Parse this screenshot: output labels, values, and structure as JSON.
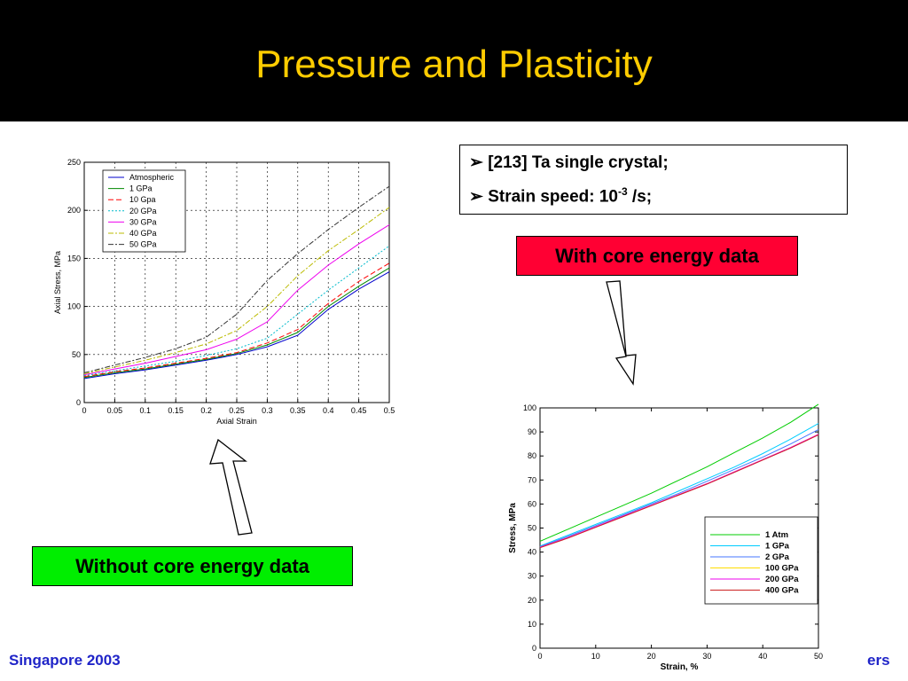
{
  "slide": {
    "title": "Pressure and Plasticity",
    "info_line1": "[213] Ta single crystal;",
    "info_line2_prefix": "Strain speed: 10",
    "info_line2_sup": "-3",
    "info_line2_suffix": " /s;",
    "with_label": "With core energy data",
    "without_label": "Without core energy data",
    "footer_left": "Singapore 2003",
    "footer_right": "ers",
    "colors": {
      "header_bg": "#000000",
      "title": "#ffcc00",
      "with_box": "#ff0033",
      "without_box": "#00ee00",
      "footer": "#1f24c8"
    }
  },
  "chart_data": [
    {
      "type": "line",
      "title": "",
      "xlabel": "Axial Strain",
      "ylabel": "Axial Stress, MPa",
      "xlim": [
        0,
        0.5
      ],
      "ylim": [
        0,
        250
      ],
      "xticks": [
        "0",
        "0.05",
        "0.1",
        "0.15",
        "0.2",
        "0.25",
        "0.3",
        "0.35",
        "0.4",
        "0.45",
        "0.5"
      ],
      "yticks": [
        "0",
        "50",
        "100",
        "150",
        "200",
        "250"
      ],
      "grid": true,
      "legend_placement": "top-left",
      "x": [
        0,
        0.05,
        0.1,
        0.15,
        0.2,
        0.25,
        0.3,
        0.35,
        0.4,
        0.45,
        0.5
      ],
      "series": [
        {
          "name": "Atmospheric",
          "color": "#0000cc",
          "dash": "",
          "values": [
            25,
            30,
            34,
            39,
            44,
            50,
            58,
            70,
            97,
            118,
            136
          ]
        },
        {
          "name": "1 GPa",
          "color": "#008800",
          "dash": "",
          "values": [
            26,
            31,
            35,
            40,
            45,
            51,
            60,
            73,
            100,
            121,
            140
          ]
        },
        {
          "name": "10 Gpa",
          "color": "#ff0000",
          "dash": "6,3",
          "values": [
            27,
            32,
            36,
            41,
            46,
            52,
            62,
            76,
            103,
            126,
            145
          ]
        },
        {
          "name": "20 GPa",
          "color": "#00bbcc",
          "dash": "2,2",
          "values": [
            28,
            33,
            38,
            43,
            49,
            56,
            67,
            92,
            117,
            140,
            163
          ]
        },
        {
          "name": "30 GPa",
          "color": "#ee00ee",
          "dash": "",
          "values": [
            29,
            35,
            41,
            48,
            55,
            66,
            84,
            117,
            143,
            165,
            185
          ]
        },
        {
          "name": "40 GPa",
          "color": "#bbbb00",
          "dash": "6,2,2,2",
          "values": [
            30,
            37,
            44,
            52,
            61,
            75,
            100,
            132,
            158,
            180,
            203
          ]
        },
        {
          "name": "50 GPa",
          "color": "#333333",
          "dash": "6,2,2,2",
          "values": [
            31,
            39,
            47,
            56,
            68,
            92,
            127,
            155,
            180,
            203,
            225
          ]
        }
      ]
    },
    {
      "type": "line",
      "title": "",
      "xlabel": "Strain, %",
      "ylabel": "Stress, MPa",
      "xlim": [
        0,
        50
      ],
      "ylim": [
        0,
        100
      ],
      "xticks": [
        "0",
        "10",
        "20",
        "30",
        "40",
        "50"
      ],
      "yticks": [
        "0",
        "10",
        "20",
        "30",
        "40",
        "50",
        "60",
        "70",
        "80",
        "90",
        "100"
      ],
      "grid": false,
      "legend_placement": "bottom-right",
      "x": [
        0,
        5,
        10,
        15,
        20,
        25,
        30,
        35,
        40,
        45,
        50
      ],
      "series": [
        {
          "name": "1 Atm",
          "color": "#00cc00",
          "values": [
            44.5,
            49.5,
            54.5,
            59.5,
            64.5,
            70,
            75.5,
            81.5,
            87.5,
            94,
            101.5
          ]
        },
        {
          "name": "1 GPa",
          "color": "#00ccff",
          "values": [
            42.5,
            47,
            51.5,
            56,
            60.5,
            65.5,
            70.5,
            75.5,
            81,
            87,
            93.5
          ]
        },
        {
          "name": "2 GPa",
          "color": "#4477ff",
          "values": [
            42.2,
            46.5,
            51,
            55.5,
            60,
            64.5,
            69.5,
            74.5,
            79.5,
            85,
            91
          ]
        },
        {
          "name": "100 GPa",
          "color": "#ffdd00",
          "values": [
            42,
            46,
            50.5,
            55,
            59.5,
            64,
            68.5,
            73.5,
            78.5,
            83.5,
            89
          ]
        },
        {
          "name": "200 GPa",
          "color": "#ee00ee",
          "values": [
            42,
            46,
            50.5,
            55,
            59.5,
            64,
            68.5,
            73.5,
            78.5,
            83.5,
            89
          ]
        },
        {
          "name": "400 GPa",
          "color": "#cc2222",
          "values": [
            41.8,
            45.8,
            50.3,
            54.8,
            59.3,
            63.8,
            68.3,
            73.3,
            78.3,
            83.3,
            88.8
          ]
        }
      ]
    }
  ]
}
